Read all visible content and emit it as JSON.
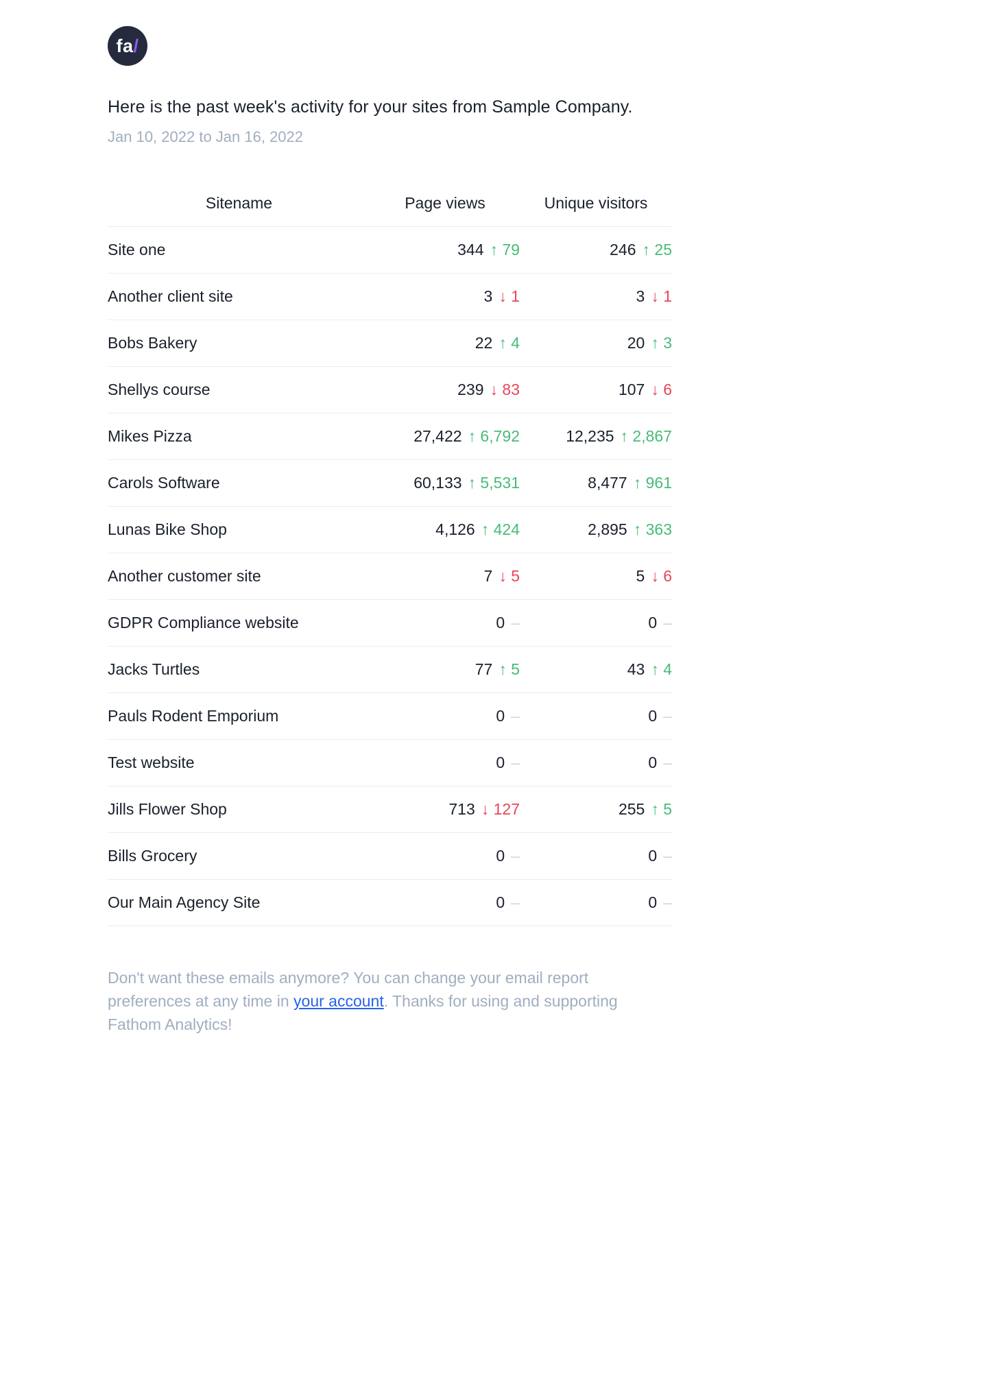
{
  "logo": {
    "text": "fa",
    "slash": "/"
  },
  "header": {
    "title": "Here is the past week's activity for your sites from Sample Company.",
    "date_range": "Jan 10, 2022 to Jan 16, 2022"
  },
  "table": {
    "columns": [
      "Sitename",
      "Page views",
      "Unique visitors"
    ],
    "glyphs": {
      "up": "↑",
      "down": "↓",
      "neutral": "–"
    },
    "rows": [
      {
        "sitename": "Site one",
        "page_views": {
          "value": "344",
          "delta": "79",
          "direction": "up"
        },
        "unique_visitors": {
          "value": "246",
          "delta": "25",
          "direction": "up"
        }
      },
      {
        "sitename": "Another client site",
        "page_views": {
          "value": "3",
          "delta": "1",
          "direction": "down"
        },
        "unique_visitors": {
          "value": "3",
          "delta": "1",
          "direction": "down"
        }
      },
      {
        "sitename": "Bobs Bakery",
        "page_views": {
          "value": "22",
          "delta": "4",
          "direction": "up"
        },
        "unique_visitors": {
          "value": "20",
          "delta": "3",
          "direction": "up"
        }
      },
      {
        "sitename": "Shellys course",
        "page_views": {
          "value": "239",
          "delta": "83",
          "direction": "down"
        },
        "unique_visitors": {
          "value": "107",
          "delta": "6",
          "direction": "down"
        }
      },
      {
        "sitename": "Mikes Pizza",
        "page_views": {
          "value": "27,422",
          "delta": "6,792",
          "direction": "up"
        },
        "unique_visitors": {
          "value": "12,235",
          "delta": "2,867",
          "direction": "up"
        }
      },
      {
        "sitename": "Carols Software",
        "page_views": {
          "value": "60,133",
          "delta": "5,531",
          "direction": "up"
        },
        "unique_visitors": {
          "value": "8,477",
          "delta": "961",
          "direction": "up"
        }
      },
      {
        "sitename": "Lunas Bike Shop",
        "page_views": {
          "value": "4,126",
          "delta": "424",
          "direction": "up"
        },
        "unique_visitors": {
          "value": "2,895",
          "delta": "363",
          "direction": "up"
        }
      },
      {
        "sitename": "Another customer site",
        "page_views": {
          "value": "7",
          "delta": "5",
          "direction": "down"
        },
        "unique_visitors": {
          "value": "5",
          "delta": "6",
          "direction": "down"
        }
      },
      {
        "sitename": "GDPR Compliance website",
        "page_views": {
          "value": "0",
          "delta": "",
          "direction": "none"
        },
        "unique_visitors": {
          "value": "0",
          "delta": "",
          "direction": "none"
        }
      },
      {
        "sitename": "Jacks Turtles",
        "page_views": {
          "value": "77",
          "delta": "5",
          "direction": "up"
        },
        "unique_visitors": {
          "value": "43",
          "delta": "4",
          "direction": "up"
        }
      },
      {
        "sitename": "Pauls Rodent Emporium",
        "page_views": {
          "value": "0",
          "delta": "",
          "direction": "none"
        },
        "unique_visitors": {
          "value": "0",
          "delta": "",
          "direction": "none"
        }
      },
      {
        "sitename": "Test website",
        "page_views": {
          "value": "0",
          "delta": "",
          "direction": "none"
        },
        "unique_visitors": {
          "value": "0",
          "delta": "",
          "direction": "none"
        }
      },
      {
        "sitename": "Jills Flower Shop",
        "page_views": {
          "value": "713",
          "delta": "127",
          "direction": "down"
        },
        "unique_visitors": {
          "value": "255",
          "delta": "5",
          "direction": "up"
        }
      },
      {
        "sitename": "Bills Grocery",
        "page_views": {
          "value": "0",
          "delta": "",
          "direction": "none"
        },
        "unique_visitors": {
          "value": "0",
          "delta": "",
          "direction": "none"
        }
      },
      {
        "sitename": "Our Main Agency Site",
        "page_views": {
          "value": "0",
          "delta": "",
          "direction": "none"
        },
        "unique_visitors": {
          "value": "0",
          "delta": "",
          "direction": "none"
        }
      }
    ]
  },
  "footer": {
    "text_before_link": "Don't want these emails anymore? You can change your email report preferences at any time in ",
    "link_label": "your account",
    "text_after_link": ". Thanks for using and supporting Fathom Analytics!"
  },
  "colors": {
    "up": "#48bb78",
    "down": "#e8465a",
    "neutral": "#cbd5e0",
    "ink": "#1a202c",
    "muted": "#a0aec0",
    "border": "#e9edf2",
    "link": "#2563eb",
    "logo_bg": "#252b3d",
    "logo_slash": "#8b5cf6"
  }
}
